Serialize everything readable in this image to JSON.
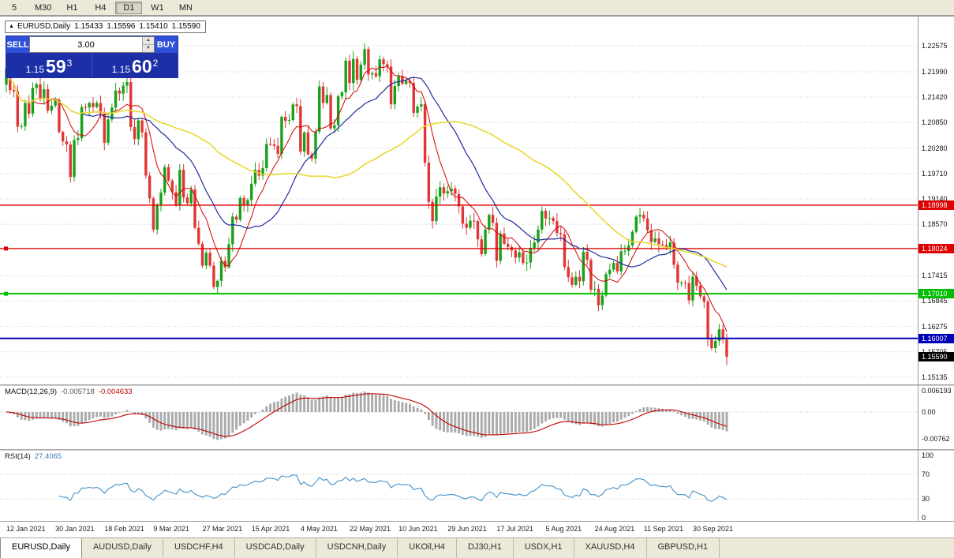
{
  "toolbar": {
    "timeframes": [
      {
        "label": "5",
        "active": false
      },
      {
        "label": "M30",
        "active": false
      },
      {
        "label": "H1",
        "active": false
      },
      {
        "label": "H4",
        "active": false
      },
      {
        "label": "D1",
        "active": true
      },
      {
        "label": "W1",
        "active": false
      },
      {
        "label": "MN",
        "active": false
      }
    ]
  },
  "chart_header": {
    "marker": "▲",
    "symbol": "EURUSD,Daily",
    "open": "1.15433",
    "high": "1.15596",
    "low": "1.15410",
    "close": "1.15590"
  },
  "trade_panel": {
    "sell_label": "SELL",
    "buy_label": "BUY",
    "volume": "3.00",
    "spin_up_icon": "▲",
    "spin_down_icon": "▼",
    "sell_price": {
      "small": "1.15",
      "big": "59",
      "pip": "3"
    },
    "buy_price": {
      "small": "1.15",
      "big": "60",
      "pip": "2"
    }
  },
  "price_axis": {
    "labels": [
      "1.22575",
      "1.21990",
      "1.21420",
      "1.20850",
      "1.20280",
      "1.19710",
      "1.19140",
      "1.18570",
      "1.17415",
      "1.16845",
      "1.16275",
      "1.15705",
      "1.15135"
    ],
    "badges": [
      {
        "text": "1.18998",
        "color": "#DC0000"
      },
      {
        "text": "1.18024",
        "color": "#DC0000"
      },
      {
        "text": "1.17010",
        "color": "#00BE00"
      },
      {
        "text": "1.16007",
        "color": "#0000B8"
      },
      {
        "text": "1.15590",
        "color": "#000000"
      }
    ]
  },
  "macd_panel": {
    "title": "MACD(12,26,9)",
    "main_value": "-0.005718",
    "signal_value": "-0.004633",
    "axis": [
      {
        "text": "0.006193",
        "value": 0.006193
      },
      {
        "text": "0.00",
        "value": 0
      },
      {
        "text": "-0.00762",
        "value": -0.00762
      }
    ]
  },
  "rsi_panel": {
    "title": "RSI(14)",
    "value": "27.4065",
    "axis": [
      {
        "text": "100",
        "value": 100
      },
      {
        "text": "70",
        "value": 70
      },
      {
        "text": "30",
        "value": 30
      },
      {
        "text": "0",
        "value": 0
      }
    ]
  },
  "time_axis": {
    "labels": [
      "12 Jan 2021",
      "30 Jan 2021",
      "18 Feb 2021",
      "9 Mar 2021",
      "27 Mar 2021",
      "15 Apr 2021",
      "4 May 2021",
      "22 May 2021",
      "10 Jun 2021",
      "29 Jun 2021",
      "17 Jul 2021",
      "5 Aug 2021",
      "24 Aug 2021",
      "11 Sep 2021",
      "30 Sep 2021"
    ]
  },
  "tabs": [
    {
      "label": "EURUSD,Daily",
      "active": true
    },
    {
      "label": "AUDUSD,Daily",
      "active": false
    },
    {
      "label": "USDCHF,H4",
      "active": false
    },
    {
      "label": "USDCAD,Daily",
      "active": false
    },
    {
      "label": "USDCNH,Daily",
      "active": false
    },
    {
      "label": "UKOil,H4",
      "active": false
    },
    {
      "label": "DJ30,H1",
      "active": false
    },
    {
      "label": "USDX,H1",
      "active": false
    },
    {
      "label": "XAUUSD,H4",
      "active": false
    },
    {
      "label": "GBPUSD,H1",
      "active": false
    }
  ],
  "chart_data": {
    "type": "candlestick",
    "symbol": "EURUSD",
    "timeframe": "Daily",
    "price_axis_top_label": 1.22575,
    "price_axis_bottom_label": 1.15135,
    "x_label_every_n_bars": 13,
    "first_open": 1.217,
    "closes": [
      1.2207,
      1.2158,
      1.2155,
      1.2076,
      1.2077,
      1.2129,
      1.2105,
      1.2163,
      1.2171,
      1.214,
      1.216,
      1.2112,
      1.2123,
      1.2136,
      1.2064,
      1.2043,
      1.2036,
      1.1963,
      1.2046,
      1.205,
      1.212,
      1.2119,
      1.2129,
      1.212,
      1.2129,
      1.2105,
      1.204,
      1.2092,
      1.2119,
      1.2157,
      1.215,
      1.2168,
      1.2176,
      1.2075,
      1.2048,
      1.209,
      1.2063,
      1.1966,
      1.1915,
      1.1845,
      1.19,
      1.1928,
      1.1985,
      1.1955,
      1.1929,
      1.19,
      1.1979,
      1.1917,
      1.1904,
      1.1935,
      1.1849,
      1.1813,
      1.1764,
      1.1793,
      1.1764,
      1.1716,
      1.173,
      1.1775,
      1.176,
      1.1812,
      1.1874,
      1.1867,
      1.1916,
      1.1899,
      1.1911,
      1.1948,
      1.1979,
      1.1966,
      1.1983,
      1.2037,
      1.2036,
      1.2033,
      1.2015,
      1.2098,
      1.2089,
      1.2091,
      1.2126,
      1.2122,
      1.202,
      1.2063,
      1.2014,
      1.2004,
      1.2065,
      1.2166,
      1.2129,
      1.2147,
      1.2072,
      1.2079,
      1.2144,
      1.2153,
      1.2224,
      1.2174,
      1.2228,
      1.2181,
      1.2215,
      1.225,
      1.2193,
      1.2196,
      1.2189,
      1.2227,
      1.2216,
      1.2211,
      1.2126,
      1.2167,
      1.219,
      1.2172,
      1.2179,
      1.2174,
      1.2107,
      1.2121,
      1.2126,
      1.1995,
      1.1907,
      1.1864,
      1.1919,
      1.194,
      1.1926,
      1.1931,
      1.1937,
      1.1925,
      1.1897,
      1.1858,
      1.1849,
      1.1865,
      1.1864,
      1.1823,
      1.179,
      1.1845,
      1.1878,
      1.186,
      1.1775,
      1.1836,
      1.1813,
      1.1806,
      1.1798,
      1.1782,
      1.1794,
      1.177,
      1.1771,
      1.1804,
      1.1816,
      1.1845,
      1.1887,
      1.187,
      1.1871,
      1.1864,
      1.1837,
      1.1834,
      1.1761,
      1.1738,
      1.1721,
      1.1739,
      1.1729,
      1.1795,
      1.1777,
      1.171,
      1.1712,
      1.1675,
      1.1697,
      1.1745,
      1.1755,
      1.177,
      1.1751,
      1.1796,
      1.1797,
      1.1809,
      1.184,
      1.1874,
      1.1878,
      1.187,
      1.1843,
      1.1817,
      1.1825,
      1.1812,
      1.181,
      1.1805,
      1.1816,
      1.1766,
      1.1726,
      1.1726,
      1.1725,
      1.1686,
      1.1739,
      1.1719,
      1.1695,
      1.1683,
      1.1599,
      1.1579,
      1.1595,
      1.1621,
      1.1598,
      1.1559
    ],
    "candle_colors": {
      "up": "#18A118",
      "down": "#E03636"
    },
    "hlines": [
      {
        "price": 1.18998,
        "color": "#DC0000",
        "width": 1.4,
        "handle": false
      },
      {
        "price": 1.18024,
        "color": "#DC0000",
        "width": 1.4,
        "handle": true
      },
      {
        "price": 1.1701,
        "color": "#00BE00",
        "width": 2,
        "handle": true
      },
      {
        "price": 1.16007,
        "color": "#0000B8",
        "width": 2,
        "handle": false
      }
    ],
    "moving_averages": [
      {
        "period": 8,
        "color": "#D40000",
        "width": 1
      },
      {
        "period": 21,
        "color": "#1F2D9C",
        "width": 1.2
      },
      {
        "period": 55,
        "color": "#E8D834",
        "width": 1.6
      }
    ],
    "indicators": {
      "macd": {
        "fast": 12,
        "slow": 26,
        "signal": 9,
        "hist_color": "#ABABAB",
        "signal_color": "#C00000",
        "current_main": -0.005718,
        "current_signal": -0.004633
      },
      "rsi": {
        "period": 14,
        "color": "#4191C9",
        "current": 27.4065,
        "levels": [
          70,
          30
        ]
      }
    }
  }
}
